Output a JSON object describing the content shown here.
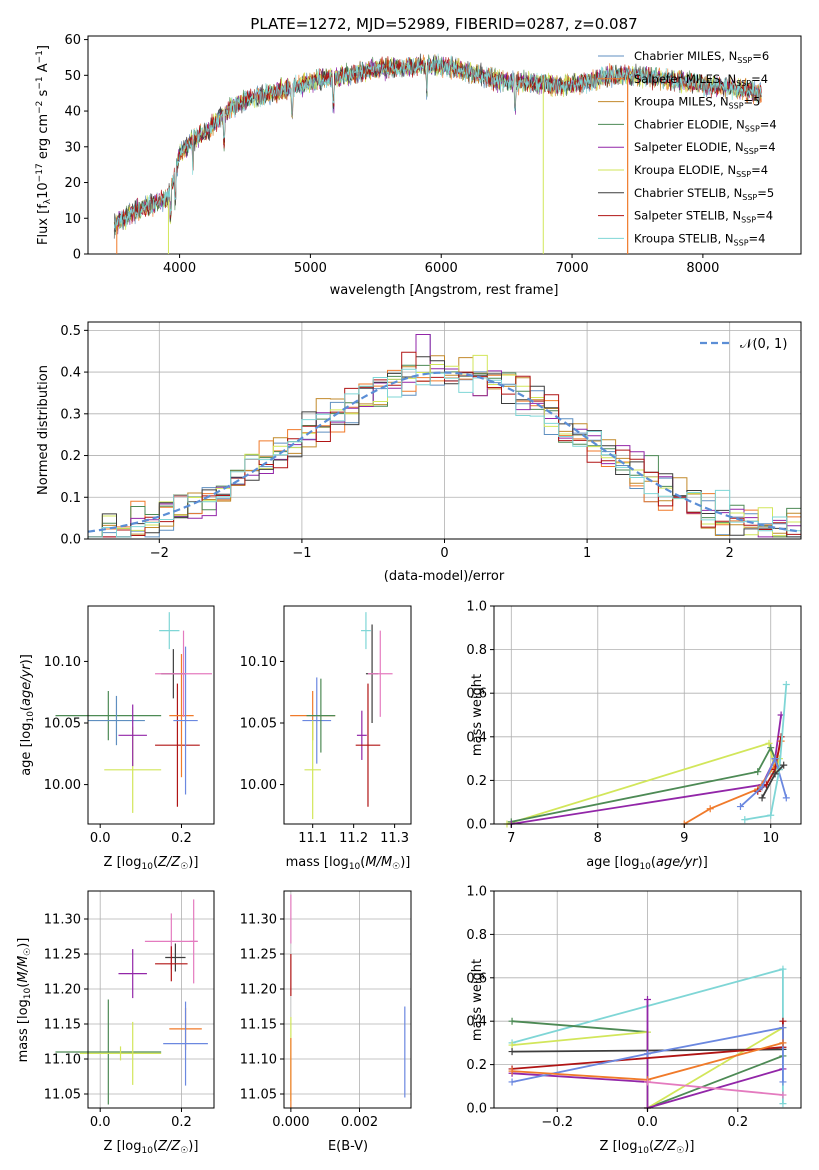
{
  "title": "PLATE=1272, MJD=52989, FIBERID=0287, z=0.087",
  "colors": {
    "chab_miles": "#5f8fc0",
    "salp_miles": "#f07a2a",
    "krou_miles": "#c28a2c",
    "chab_elodie": "#4d8a55",
    "salp_elodie": "#9226a8",
    "krou_elodie": "#d2e65a",
    "chab_stelib": "#3d3d3d",
    "salp_stelib": "#b01414",
    "krou_stelib": "#7fd6d6",
    "gauss": "#5b8ed6",
    "extra_pink": "#e47bbf",
    "extra_blue": "#6b88e0"
  },
  "chart_data": [
    {
      "id": "spectrum",
      "type": "line",
      "title": "PLATE=1272, MJD=52989, FIBERID=0287, z=0.087",
      "xlabel": "wavelength [Angstrom, rest frame]",
      "ylabel": "Flux [f",
      "ylabel_full": "Flux [fλ10⁻¹⁷ erg cm⁻² s⁻¹ A⁻¹]",
      "xlim": [
        3300,
        8750
      ],
      "ylim": [
        0,
        61
      ],
      "xticks": [
        4000,
        5000,
        6000,
        7000,
        8000
      ],
      "yticks": [
        0,
        10,
        20,
        30,
        40,
        50,
        60
      ],
      "anchors": [
        [
          3500,
          8
        ],
        [
          3650,
          12
        ],
        [
          3800,
          14
        ],
        [
          3900,
          15
        ],
        [
          3950,
          20
        ],
        [
          4000,
          28
        ],
        [
          4100,
          32
        ],
        [
          4200,
          34
        ],
        [
          4300,
          38
        ],
        [
          4400,
          41
        ],
        [
          4500,
          43
        ],
        [
          4700,
          45
        ],
        [
          4900,
          47
        ],
        [
          5100,
          49
        ],
        [
          5300,
          50
        ],
        [
          5500,
          52
        ],
        [
          5700,
          52
        ],
        [
          5900,
          53
        ],
        [
          6100,
          52
        ],
        [
          6300,
          50
        ],
        [
          6500,
          48
        ],
        [
          6700,
          48
        ],
        [
          6900,
          47
        ],
        [
          7100,
          48
        ],
        [
          7300,
          50
        ],
        [
          7500,
          50
        ],
        [
          7700,
          49
        ],
        [
          7900,
          48
        ],
        [
          8100,
          47
        ],
        [
          8300,
          46
        ],
        [
          8450,
          45
        ]
      ],
      "legend": [
        {
          "name": "Chabrier MILES, N",
          "sub": "SSP",
          "val": "=6",
          "color": "#5f8fc0"
        },
        {
          "name": "Salpeter MILES, N",
          "sub": "SSP",
          "val": "=4",
          "color": "#f07a2a"
        },
        {
          "name": "Kroupa MILES, N",
          "sub": "SSP",
          "val": "=5",
          "color": "#c28a2c"
        },
        {
          "name": "Chabrier ELODIE, N",
          "sub": "SSP",
          "val": "=4",
          "color": "#4d8a55"
        },
        {
          "name": "Salpeter ELODIE, N",
          "sub": "SSP",
          "val": "=4",
          "color": "#9226a8"
        },
        {
          "name": "Kroupa ELODIE, N",
          "sub": "SSP",
          "val": "=4",
          "color": "#d2e65a"
        },
        {
          "name": "Chabrier STELIB, N",
          "sub": "SSP",
          "val": "=5",
          "color": "#3d3d3d"
        },
        {
          "name": "Salpeter STELIB, N",
          "sub": "SSP",
          "val": "=4",
          "color": "#b01414"
        },
        {
          "name": "Kroupa STELIB, N",
          "sub": "SSP",
          "val": "=4",
          "color": "#7fd6d6"
        }
      ]
    },
    {
      "id": "histogram",
      "type": "bar",
      "xlabel": "(data-model)/error",
      "ylabel": "Normed distribution",
      "xlim": [
        -2.5,
        2.5
      ],
      "ylim": [
        0,
        0.52
      ],
      "xticks": [
        -2,
        -1,
        0,
        1,
        2
      ],
      "yticks": [
        0.0,
        0.1,
        0.2,
        0.3,
        0.4,
        0.5
      ],
      "legend": "𝒩(0, 1)",
      "bin_width": 0.1
    },
    {
      "id": "age_vs_Z",
      "type": "scatter",
      "xlabel": "Z [log",
      "xlabel_full": "Z [log10(Z/Z☉)]",
      "ylabel": "age  [log10(age/yr)]",
      "xlim": [
        -0.03,
        0.28
      ],
      "ylim": [
        9.968,
        10.145
      ],
      "xticks": [
        0.0,
        0.2
      ],
      "yticks": [
        10.0,
        10.05,
        10.1
      ],
      "points": [
        {
          "x": 0.02,
          "y": 10.056,
          "xerr": 0.13,
          "yerr": 0.02,
          "color": "#4d8a55"
        },
        {
          "x": 0.04,
          "y": 10.052,
          "xerr": 0.07,
          "yerr": 0.02,
          "color": "#5f8fc0"
        },
        {
          "x": 0.08,
          "y": 10.012,
          "xerr": 0.07,
          "yerr": 0.035,
          "color": "#d2e65a"
        },
        {
          "x": 0.08,
          "y": 10.04,
          "xerr": 0.035,
          "yerr": 0.025,
          "color": "#9226a8"
        },
        {
          "x": 0.17,
          "y": 10.125,
          "xerr": 0.025,
          "yerr": 0.015,
          "color": "#7fd6d6"
        },
        {
          "x": 0.18,
          "y": 10.09,
          "xerr": 0.03,
          "yerr": 0.02,
          "color": "#3d3d3d"
        },
        {
          "x": 0.19,
          "y": 10.032,
          "xerr": 0.055,
          "yerr": 0.05,
          "color": "#b01414"
        },
        {
          "x": 0.2,
          "y": 10.056,
          "xerr": 0.03,
          "yerr": 0.05,
          "color": "#f07a2a"
        },
        {
          "x": 0.21,
          "y": 10.052,
          "xerr": 0.03,
          "yerr": 0.06,
          "color": "#6b88e0"
        },
        {
          "x": 0.205,
          "y": 10.09,
          "xerr": 0.07,
          "yerr": 0.035,
          "color": "#e47bbf"
        }
      ]
    },
    {
      "id": "age_vs_mass",
      "type": "scatter",
      "xlabel": "mass [log10(M/M☉)]",
      "xlim": [
        11.03,
        11.34
      ],
      "ylim": [
        9.968,
        10.145
      ],
      "xticks": [
        11.1,
        11.2,
        11.3
      ],
      "yticks": [
        10.0,
        10.05,
        10.1
      ],
      "points": [
        {
          "x": 11.1,
          "y": 10.056,
          "xerr": 0.055,
          "yerr": 0.02,
          "color": "#f07a2a"
        },
        {
          "x": 11.11,
          "y": 10.052,
          "xerr": 0.035,
          "yerr": 0.035,
          "color": "#6b88e0"
        },
        {
          "x": 11.12,
          "y": 10.056,
          "xerr": 0.035,
          "yerr": 0.03,
          "color": "#4d8a55"
        },
        {
          "x": 11.1,
          "y": 10.012,
          "xerr": 0.02,
          "yerr": 0.04,
          "color": "#d2e65a"
        },
        {
          "x": 11.22,
          "y": 10.04,
          "xerr": 0.012,
          "yerr": 0.02,
          "color": "#9226a8"
        },
        {
          "x": 11.235,
          "y": 10.032,
          "xerr": 0.03,
          "yerr": 0.05,
          "color": "#b01414"
        },
        {
          "x": 11.23,
          "y": 10.125,
          "xerr": 0.012,
          "yerr": 0.015,
          "color": "#7fd6d6"
        },
        {
          "x": 11.245,
          "y": 10.09,
          "xerr": 0.015,
          "yerr": 0.04,
          "color": "#3d3d3d"
        },
        {
          "x": 11.265,
          "y": 10.09,
          "xerr": 0.03,
          "yerr": 0.035,
          "color": "#e47bbf"
        }
      ]
    },
    {
      "id": "mw_vs_age",
      "type": "line",
      "xlabel": "age  [log10(age/yr)]",
      "ylabel": "mass weight",
      "xlim": [
        6.8,
        10.35
      ],
      "ylim": [
        0,
        1.0
      ],
      "xticks": [
        7,
        8,
        9,
        10
      ],
      "yticks": [
        0.0,
        0.2,
        0.4,
        0.6,
        0.8,
        1.0
      ],
      "series": [
        {
          "color": "#d2e65a",
          "pts": [
            [
              6.95,
              0.0
            ],
            [
              9.98,
              0.37
            ],
            [
              10.05,
              0.24
            ],
            [
              10.1,
              0.3
            ]
          ]
        },
        {
          "color": "#4d8a55",
          "pts": [
            [
              7.0,
              0.01
            ],
            [
              9.85,
              0.24
            ],
            [
              10.0,
              0.35
            ],
            [
              10.1,
              0.25
            ]
          ]
        },
        {
          "color": "#9226a8",
          "pts": [
            [
              7.0,
              0.0
            ],
            [
              9.9,
              0.18
            ],
            [
              10.05,
              0.3
            ],
            [
              10.12,
              0.5
            ]
          ]
        },
        {
          "color": "#f07a2a",
          "pts": [
            [
              9.0,
              0.0
            ],
            [
              9.3,
              0.07
            ],
            [
              9.85,
              0.16
            ],
            [
              10.05,
              0.27
            ],
            [
              10.12,
              0.38
            ]
          ]
        },
        {
          "color": "#b01414",
          "pts": [
            [
              9.85,
              0.15
            ],
            [
              9.95,
              0.18
            ],
            [
              10.05,
              0.25
            ],
            [
              10.12,
              0.4
            ]
          ]
        },
        {
          "color": "#6b88e0",
          "pts": [
            [
              9.65,
              0.08
            ],
            [
              9.9,
              0.17
            ],
            [
              10.05,
              0.3
            ],
            [
              10.18,
              0.12
            ]
          ]
        },
        {
          "color": "#7fd6d6",
          "pts": [
            [
              9.7,
              0.02
            ],
            [
              10.0,
              0.04
            ],
            [
              10.1,
              0.25
            ],
            [
              10.18,
              0.64
            ]
          ]
        },
        {
          "color": "#3d3d3d",
          "pts": [
            [
              9.9,
              0.12
            ],
            [
              10.05,
              0.23
            ],
            [
              10.15,
              0.27
            ]
          ]
        }
      ]
    },
    {
      "id": "mass_vs_Z",
      "type": "scatter",
      "xlabel": "Z [log10(Z/Z☉)]",
      "ylabel": "mass [log10(M/M☉)]",
      "xlim": [
        -0.03,
        0.28
      ],
      "ylim": [
        11.03,
        11.34
      ],
      "xticks": [
        0.0,
        0.2
      ],
      "yticks": [
        11.05,
        11.1,
        11.15,
        11.2,
        11.25,
        11.3
      ],
      "points": [
        {
          "x": 0.02,
          "y": 11.11,
          "xerr": 0.13,
          "yerr": 0.075,
          "color": "#4d8a55"
        },
        {
          "x": 0.05,
          "y": 11.108,
          "xerr": 0.1,
          "yerr": 0.01,
          "color": "#d2e65a"
        },
        {
          "x": 0.08,
          "y": 11.108,
          "xerr": 0.01,
          "yerr": 0.045,
          "color": "#d2e65a"
        },
        {
          "x": 0.08,
          "y": 11.222,
          "xerr": 0.035,
          "yerr": 0.035,
          "color": "#9226a8"
        },
        {
          "x": 0.175,
          "y": 11.268,
          "xerr": 0.065,
          "yerr": 0.04,
          "color": "#e47bbf"
        },
        {
          "x": 0.185,
          "y": 11.245,
          "xerr": 0.025,
          "yerr": 0.02,
          "color": "#3d3d3d"
        },
        {
          "x": 0.175,
          "y": 11.236,
          "xerr": 0.04,
          "yerr": 0.025,
          "color": "#b01414"
        },
        {
          "x": 0.21,
          "y": 11.143,
          "xerr": 0.04,
          "yerr": 0.03,
          "color": "#f07a2a"
        },
        {
          "x": 0.21,
          "y": 11.122,
          "xerr": 0.055,
          "yerr": 0.06,
          "color": "#6b88e0"
        },
        {
          "x": 0.23,
          "y": 11.268,
          "xerr": 0.01,
          "yerr": 0.06,
          "color": "#e47bbf"
        }
      ]
    },
    {
      "id": "mass_vs_EBV",
      "type": "scatter",
      "xlabel": "E(B-V)",
      "xlim": [
        -0.0002,
        0.0035
      ],
      "ylim": [
        11.03,
        11.34
      ],
      "xticks": [
        0.0,
        0.002
      ],
      "yticks": [
        11.05,
        11.1,
        11.15,
        11.2,
        11.25,
        11.3
      ],
      "points": [
        {
          "x": 0.0,
          "y": 11.3,
          "yerr": 0.035,
          "color": "#e47bbf"
        },
        {
          "x": 0.0,
          "y": 11.22,
          "yerr": 0.03,
          "color": "#b01414"
        },
        {
          "x": 0.0,
          "y": 11.1,
          "yerr": 0.06,
          "color": "#d2e65a"
        },
        {
          "x": 0.0,
          "y": 11.08,
          "yerr": 0.05,
          "color": "#f07a2a"
        },
        {
          "x": 0.00332,
          "y": 11.11,
          "yerr": 0.065,
          "color": "#6b88e0"
        }
      ]
    },
    {
      "id": "mw_vs_Z",
      "type": "line",
      "xlabel": "Z [log10(Z/Z☉)]",
      "ylabel": "mass weight",
      "xlim": [
        -0.34,
        0.34
      ],
      "ylim": [
        0,
        1.0
      ],
      "xticks": [
        -0.2,
        0.0,
        0.2
      ],
      "yticks": [
        0.0,
        0.2,
        0.4,
        0.6,
        0.8,
        1.0
      ],
      "series": [
        {
          "color": "#7fd6d6",
          "pts": [
            [
              -0.3,
              0.3
            ],
            [
              0.3,
              0.64
            ],
            [
              0.3,
              0.02
            ]
          ]
        },
        {
          "color": "#4d8a55",
          "pts": [
            [
              -0.3,
              0.4
            ],
            [
              0.0,
              0.35
            ],
            [
              0.0,
              0.0
            ],
            [
              0.3,
              0.24
            ]
          ]
        },
        {
          "color": "#d2e65a",
          "pts": [
            [
              -0.3,
              0.29
            ],
            [
              0.0,
              0.35
            ],
            [
              0.0,
              0.0
            ],
            [
              0.3,
              0.37
            ]
          ]
        },
        {
          "color": "#3d3d3d",
          "pts": [
            [
              -0.3,
              0.26
            ],
            [
              0.3,
              0.27
            ]
          ]
        },
        {
          "color": "#9226a8",
          "pts": [
            [
              -0.3,
              0.16
            ],
            [
              0.0,
              0.12
            ],
            [
              0.0,
              0.5
            ],
            [
              0.0,
              0.0
            ],
            [
              0.3,
              0.18
            ]
          ]
        },
        {
          "color": "#b01414",
          "pts": [
            [
              -0.3,
              0.18
            ],
            [
              0.3,
              0.28
            ],
            [
              0.3,
              0.4
            ]
          ]
        },
        {
          "color": "#6b88e0",
          "pts": [
            [
              -0.3,
              0.12
            ],
            [
              0.0,
              0.25
            ],
            [
              0.3,
              0.37
            ],
            [
              0.3,
              0.12
            ]
          ]
        },
        {
          "color": "#f07a2a",
          "pts": [
            [
              -0.3,
              0.17
            ],
            [
              0.0,
              0.13
            ],
            [
              0.3,
              0.3
            ]
          ]
        },
        {
          "color": "#e47bbf",
          "pts": [
            [
              0.0,
              0.12
            ],
            [
              0.3,
              0.06
            ]
          ]
        }
      ]
    }
  ]
}
